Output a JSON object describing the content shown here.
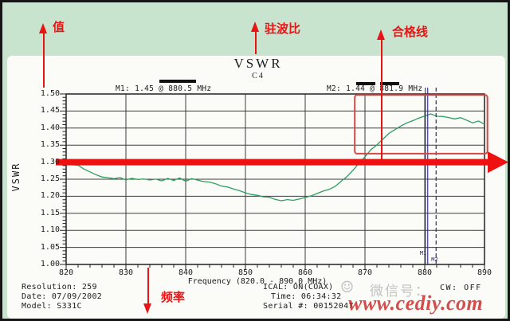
{
  "colors": {
    "background_green": "#c8e4cf",
    "panel_white": "#fbfbf8",
    "trace_green": "#2f9e60",
    "annotation_red": "#e81414",
    "limit_bar_red": "#ee1111",
    "highlight_box_red": "#d04a4a",
    "marker_navy": "#2a2a7a",
    "grid_black": "#3c3c3c"
  },
  "annotations": {
    "value_label": "值",
    "vswr_label": "驻波比",
    "pass_line_label": "合格线",
    "frequency_label": "频率"
  },
  "chart_data": {
    "type": "line",
    "title": "VSWR",
    "channel": "C4",
    "xlabel": "Frequency (820.0 - 890.0 MHz)",
    "ylabel": "VSWR",
    "xlim": [
      820,
      890
    ],
    "ylim": [
      1.0,
      1.5
    ],
    "x_ticks": [
      820,
      830,
      840,
      850,
      860,
      870,
      880,
      890
    ],
    "y_tick_labels": [
      "1.50",
      "1.45",
      "1.40",
      "1.35",
      "1.30",
      "1.25",
      "1.20",
      "1.15",
      "1.10",
      "1.05",
      "1.00"
    ],
    "grid": true,
    "limit_value": 1.3,
    "highlight_box": {
      "freq_from": 868.3,
      "freq_to": 890.5,
      "vswr_from": 1.325,
      "vswr_to": 1.497
    },
    "markers": [
      {
        "id": "M1",
        "label": "M1: 1.45 @ 880.5 MHz",
        "freq": 880.5,
        "value": 1.45,
        "line_style": "solid"
      },
      {
        "id": "M2",
        "label": "M2: 1.44 @ 881.9 MHz",
        "freq": 881.9,
        "value": 1.44,
        "line_style": "dashed"
      }
    ],
    "series": [
      {
        "name": "VSWR trace",
        "x": [
          820,
          821,
          822,
          823,
          824,
          825,
          826,
          827,
          828,
          829,
          830,
          831,
          832,
          833,
          834,
          835,
          836,
          837,
          838,
          839,
          840,
          841,
          842,
          843,
          844,
          845,
          846,
          847,
          848,
          849,
          850,
          851,
          852,
          853,
          854,
          855,
          856,
          857,
          858,
          859,
          860,
          861,
          862,
          863,
          864,
          865,
          866,
          867,
          868,
          869,
          870,
          871,
          872,
          873,
          874,
          875,
          876,
          877,
          878,
          879,
          880,
          881,
          882,
          883,
          884,
          885,
          886,
          887,
          888,
          889,
          890
        ],
        "y": [
          1.3,
          1.294,
          1.289,
          1.28,
          1.271,
          1.263,
          1.257,
          1.253,
          1.251,
          1.255,
          1.25,
          1.254,
          1.248,
          1.253,
          1.249,
          1.25,
          1.247,
          1.252,
          1.247,
          1.253,
          1.245,
          1.252,
          1.248,
          1.243,
          1.24,
          1.236,
          1.23,
          1.225,
          1.22,
          1.216,
          1.212,
          1.206,
          1.202,
          1.198,
          1.196,
          1.191,
          1.189,
          1.192,
          1.188,
          1.193,
          1.197,
          1.203,
          1.208,
          1.214,
          1.221,
          1.23,
          1.243,
          1.258,
          1.275,
          1.295,
          1.315,
          1.335,
          1.352,
          1.368,
          1.384,
          1.397,
          1.406,
          1.414,
          1.421,
          1.428,
          1.434,
          1.44,
          1.436,
          1.432,
          1.429,
          1.425,
          1.431,
          1.422,
          1.415,
          1.42,
          1.411
        ]
      }
    ]
  },
  "status": {
    "left": [
      "Resolution: 259",
      "Date: 07/09/2002",
      "Model: S331C"
    ],
    "middle": [
      "ICAL: ON(COAX)",
      "Time: 06:34:32",
      "Serial #: 00152047"
    ],
    "cw": "CW: OFF"
  },
  "watermarks": {
    "wechat_label": "微信号：",
    "smiley": "☺",
    "site": "www.cediy.com"
  }
}
